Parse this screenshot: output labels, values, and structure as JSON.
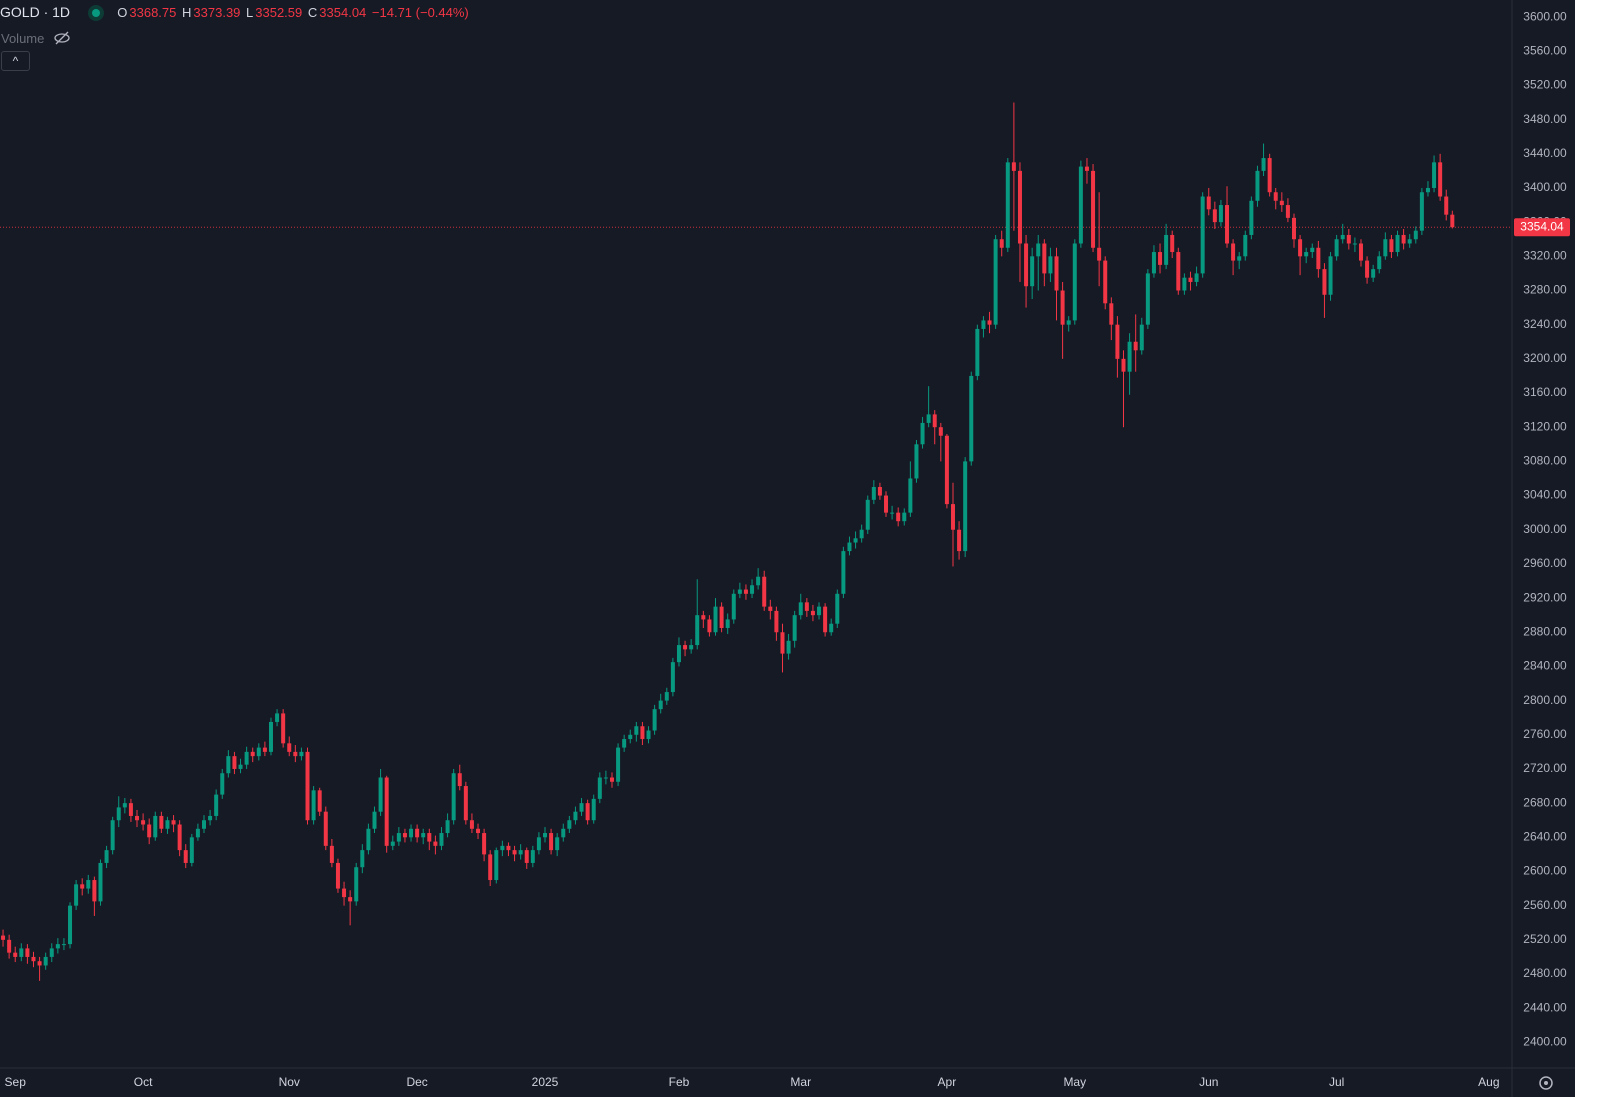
{
  "chart_data": {
    "type": "candlestick",
    "title": "GOLD · 1D",
    "ohlc_labels": [
      "O",
      "H",
      "L",
      "C"
    ],
    "change_label": "−14.71 (−0.44%)",
    "indicator": "Volume",
    "up_color": "#089981",
    "down_color": "#f23645",
    "open": [
      2525,
      2520,
      2505,
      2500,
      2510,
      2500,
      2495,
      2490,
      2500,
      2510,
      2515,
      2515,
      2560,
      2585,
      2580,
      2590,
      2565,
      2610,
      2625,
      2660,
      2675,
      2680,
      2665,
      2660,
      2655,
      2640,
      2665,
      2650,
      2660,
      2655,
      2625,
      2610,
      2640,
      2650,
      2660,
      2665,
      2690,
      2715,
      2735,
      2720,
      2725,
      2740,
      2735,
      2745,
      2740,
      2775,
      2785,
      2750,
      2740,
      2735,
      2740,
      2660,
      2695,
      2670,
      2630,
      2610,
      2580,
      2570,
      2565,
      2605,
      2625,
      2650,
      2670,
      2710,
      2630,
      2635,
      2645,
      2640,
      2650,
      2640,
      2645,
      2635,
      2630,
      2645,
      2660,
      2715,
      2700,
      2660,
      2650,
      2645,
      2620,
      2590,
      2625,
      2630,
      2625,
      2620,
      2625,
      2610,
      2625,
      2640,
      2645,
      2625,
      2640,
      2650,
      2660,
      2670,
      2680,
      2660,
      2685,
      2710,
      2710,
      2705,
      2745,
      2755,
      2760,
      2770,
      2755,
      2765,
      2790,
      2800,
      2810,
      2845,
      2865,
      2860,
      2865,
      2900,
      2895,
      2880,
      2910,
      2885,
      2895,
      2925,
      2930,
      2925,
      2935,
      2945,
      2910,
      2905,
      2880,
      2855,
      2870,
      2900,
      2915,
      2905,
      2900,
      2910,
      2880,
      2890,
      2925,
      2975,
      2985,
      2990,
      3000,
      3035,
      3050,
      3040,
      3020,
      3020,
      3010,
      3020,
      3060,
      3100,
      3125,
      3135,
      3120,
      3110,
      3030,
      3000,
      2975,
      3080,
      3180,
      3235,
      3245,
      3240,
      3340,
      3330,
      3430,
      3420,
      3335,
      3285,
      3320,
      3335,
      3300,
      3320,
      3280,
      3240,
      3245,
      3335,
      3425,
      3420,
      3330,
      3315,
      3265,
      3240,
      3200,
      3185,
      3220,
      3210,
      3240,
      3300,
      3325,
      3310,
      3345,
      3325,
      3280,
      3295,
      3290,
      3300,
      3390,
      3375,
      3360,
      3380,
      3335,
      3315,
      3320,
      3345,
      3385,
      3420,
      3435,
      3395,
      3385,
      3380,
      3365,
      3340,
      3320,
      3325,
      3330,
      3305,
      3275,
      3320,
      3340,
      3345,
      3335,
      3335,
      3315,
      3295,
      3305,
      3320,
      3340,
      3325,
      3345,
      3335,
      3340,
      3350,
      3395,
      3400,
      3430,
      3390,
      3368.75
    ],
    "high": [
      2532,
      2526,
      2512,
      2516,
      2515,
      2506,
      2500,
      2505,
      2516,
      2522,
      2522,
      2564,
      2590,
      2592,
      2596,
      2594,
      2614,
      2630,
      2664,
      2688,
      2686,
      2685,
      2672,
      2668,
      2662,
      2670,
      2670,
      2664,
      2666,
      2660,
      2632,
      2644,
      2656,
      2666,
      2672,
      2696,
      2720,
      2742,
      2740,
      2732,
      2746,
      2745,
      2750,
      2752,
      2780,
      2790,
      2790,
      2758,
      2748,
      2745,
      2745,
      2700,
      2698,
      2676,
      2638,
      2615,
      2588,
      2578,
      2610,
      2632,
      2656,
      2676,
      2720,
      2712,
      2642,
      2652,
      2650,
      2655,
      2655,
      2650,
      2650,
      2642,
      2652,
      2668,
      2720,
      2725,
      2705,
      2668,
      2656,
      2650,
      2625,
      2628,
      2636,
      2634,
      2630,
      2632,
      2628,
      2630,
      2646,
      2652,
      2650,
      2645,
      2656,
      2665,
      2676,
      2686,
      2684,
      2690,
      2716,
      2718,
      2716,
      2750,
      2760,
      2766,
      2775,
      2775,
      2770,
      2795,
      2808,
      2815,
      2850,
      2874,
      2870,
      2872,
      2942,
      2905,
      2900,
      2920,
      2915,
      2902,
      2930,
      2938,
      2936,
      2942,
      2955,
      2952,
      2918,
      2910,
      2890,
      2878,
      2905,
      2925,
      2920,
      2912,
      2915,
      2914,
      2896,
      2930,
      2980,
      2992,
      2998,
      3006,
      3040,
      3058,
      3055,
      3045,
      3028,
      3026,
      3025,
      3080,
      3105,
      3132,
      3168,
      3140,
      3125,
      3112,
      3055,
      3010,
      3085,
      3185,
      3240,
      3250,
      3255,
      3345,
      3350,
      3435,
      3500,
      3430,
      3345,
      3330,
      3345,
      3340,
      3330,
      3330,
      3290,
      3250,
      3340,
      3432,
      3435,
      3428,
      3395,
      3320,
      3272,
      3250,
      3210,
      3230,
      3252,
      3248,
      3305,
      3333,
      3335,
      3358,
      3350,
      3330,
      3300,
      3302,
      3308,
      3395,
      3400,
      3384,
      3386,
      3402,
      3340,
      3325,
      3350,
      3390,
      3426,
      3452,
      3440,
      3400,
      3395,
      3388,
      3370,
      3345,
      3330,
      3335,
      3338,
      3312,
      3325,
      3345,
      3358,
      3352,
      3342,
      3340,
      3320,
      3310,
      3326,
      3348,
      3345,
      3350,
      3352,
      3346,
      3355,
      3400,
      3408,
      3438,
      3440,
      3398,
      3373.39
    ],
    "low": [
      2512,
      2498,
      2494,
      2495,
      2492,
      2488,
      2472,
      2485,
      2494,
      2504,
      2508,
      2510,
      2555,
      2572,
      2574,
      2548,
      2560,
      2604,
      2620,
      2652,
      2668,
      2658,
      2652,
      2648,
      2632,
      2636,
      2645,
      2644,
      2646,
      2618,
      2604,
      2606,
      2636,
      2645,
      2654,
      2660,
      2685,
      2710,
      2714,
      2715,
      2720,
      2728,
      2730,
      2735,
      2736,
      2770,
      2745,
      2735,
      2728,
      2730,
      2655,
      2655,
      2665,
      2625,
      2605,
      2575,
      2560,
      2537,
      2560,
      2598,
      2620,
      2645,
      2665,
      2622,
      2625,
      2630,
      2634,
      2635,
      2634,
      2632,
      2625,
      2620,
      2625,
      2640,
      2655,
      2695,
      2655,
      2645,
      2638,
      2612,
      2583,
      2586,
      2618,
      2618,
      2612,
      2614,
      2603,
      2605,
      2620,
      2634,
      2620,
      2618,
      2635,
      2645,
      2655,
      2665,
      2655,
      2656,
      2680,
      2702,
      2698,
      2700,
      2740,
      2750,
      2752,
      2748,
      2750,
      2760,
      2785,
      2795,
      2805,
      2840,
      2852,
      2855,
      2860,
      2885,
      2875,
      2876,
      2880,
      2878,
      2890,
      2920,
      2918,
      2920,
      2930,
      2905,
      2895,
      2870,
      2833,
      2848,
      2862,
      2895,
      2898,
      2893,
      2895,
      2875,
      2876,
      2885,
      2920,
      2970,
      2978,
      2985,
      2995,
      3030,
      3035,
      3015,
      3012,
      3004,
      3005,
      3015,
      3055,
      3095,
      3120,
      3100,
      3080,
      3025,
      2957,
      2965,
      2968,
      3075,
      3175,
      3225,
      3230,
      3235,
      3320,
      3325,
      3350,
      3290,
      3260,
      3270,
      3280,
      3285,
      3290,
      3245,
      3200,
      3232,
      3240,
      3330,
      3405,
      3325,
      3285,
      3258,
      3222,
      3178,
      3120,
      3158,
      3185,
      3205,
      3235,
      3295,
      3300,
      3305,
      3318,
      3275,
      3275,
      3280,
      3285,
      3295,
      3368,
      3352,
      3355,
      3330,
      3298,
      3305,
      3315,
      3340,
      3378,
      3414,
      3390,
      3375,
      3372,
      3360,
      3330,
      3298,
      3312,
      3318,
      3295,
      3248,
      3268,
      3315,
      3335,
      3328,
      3325,
      3308,
      3288,
      3290,
      3300,
      3316,
      3318,
      3320,
      3328,
      3330,
      3335,
      3345,
      3390,
      3395,
      3385,
      3362,
      3352.59
    ],
    "close": [
      2520,
      2505,
      2500,
      2510,
      2500,
      2495,
      2490,
      2500,
      2510,
      2515,
      2515,
      2560,
      2585,
      2580,
      2590,
      2565,
      2610,
      2625,
      2660,
      2675,
      2680,
      2665,
      2660,
      2655,
      2640,
      2665,
      2650,
      2660,
      2655,
      2625,
      2610,
      2640,
      2650,
      2660,
      2665,
      2690,
      2715,
      2735,
      2720,
      2725,
      2740,
      2735,
      2745,
      2740,
      2775,
      2785,
      2750,
      2740,
      2735,
      2740,
      2660,
      2695,
      2670,
      2630,
      2610,
      2580,
      2570,
      2565,
      2605,
      2625,
      2650,
      2670,
      2710,
      2630,
      2635,
      2645,
      2640,
      2650,
      2640,
      2645,
      2635,
      2630,
      2645,
      2660,
      2715,
      2700,
      2660,
      2650,
      2645,
      2620,
      2590,
      2625,
      2630,
      2625,
      2620,
      2625,
      2610,
      2625,
      2640,
      2645,
      2625,
      2640,
      2650,
      2660,
      2670,
      2680,
      2660,
      2685,
      2710,
      2710,
      2705,
      2745,
      2755,
      2760,
      2770,
      2755,
      2765,
      2790,
      2800,
      2810,
      2845,
      2865,
      2860,
      2865,
      2900,
      2895,
      2880,
      2910,
      2885,
      2895,
      2925,
      2930,
      2925,
      2935,
      2945,
      2910,
      2905,
      2880,
      2855,
      2870,
      2900,
      2915,
      2905,
      2900,
      2910,
      2880,
      2890,
      2925,
      2975,
      2985,
      2990,
      3000,
      3035,
      3050,
      3040,
      3020,
      3020,
      3010,
      3020,
      3060,
      3100,
      3125,
      3135,
      3120,
      3110,
      3030,
      3000,
      2975,
      3080,
      3180,
      3235,
      3245,
      3240,
      3340,
      3330,
      3430,
      3420,
      3335,
      3285,
      3320,
      3335,
      3300,
      3320,
      3280,
      3240,
      3245,
      3335,
      3425,
      3420,
      3330,
      3315,
      3265,
      3240,
      3200,
      3185,
      3220,
      3210,
      3240,
      3300,
      3325,
      3310,
      3345,
      3325,
      3280,
      3295,
      3290,
      3300,
      3390,
      3375,
      3360,
      3380,
      3335,
      3315,
      3320,
      3345,
      3385,
      3420,
      3435,
      3395,
      3385,
      3380,
      3365,
      3340,
      3320,
      3325,
      3330,
      3305,
      3275,
      3320,
      3340,
      3345,
      3335,
      3335,
      3315,
      3295,
      3305,
      3320,
      3340,
      3325,
      3345,
      3335,
      3340,
      3350,
      3395,
      3400,
      3430,
      3390,
      3368.75,
      3354.04
    ],
    "ylim": [
      2370,
      3620
    ],
    "yticks": [
      {
        "value": 2400,
        "label": "2400.00"
      },
      {
        "value": 2440,
        "label": "2440.00"
      },
      {
        "value": 2480,
        "label": "2480.00"
      },
      {
        "value": 2520,
        "label": "2520.00"
      },
      {
        "value": 2560,
        "label": "2560.00"
      },
      {
        "value": 2600,
        "label": "2600.00"
      },
      {
        "value": 2640,
        "label": "2640.00"
      },
      {
        "value": 2680,
        "label": "2680.00"
      },
      {
        "value": 2720,
        "label": "2720.00"
      },
      {
        "value": 2760,
        "label": "2760.00"
      },
      {
        "value": 2800,
        "label": "2800.00"
      },
      {
        "value": 2840,
        "label": "2840.00"
      },
      {
        "value": 2880,
        "label": "2880.00"
      },
      {
        "value": 2920,
        "label": "2920.00"
      },
      {
        "value": 2960,
        "label": "2960.00"
      },
      {
        "value": 3000,
        "label": "3000.00"
      },
      {
        "value": 3040,
        "label": "3040.00"
      },
      {
        "value": 3080,
        "label": "3080.00"
      },
      {
        "value": 3120,
        "label": "3120.00"
      },
      {
        "value": 3160,
        "label": "3160.00"
      },
      {
        "value": 3200,
        "label": "3200.00"
      },
      {
        "value": 3240,
        "label": "3240.00"
      },
      {
        "value": 3280,
        "label": "3280.00"
      },
      {
        "value": 3320,
        "label": "3320.00"
      },
      {
        "value": 3360,
        "label": "3360.00"
      },
      {
        "value": 3400,
        "label": "3400.00"
      },
      {
        "value": 3440,
        "label": "3440.00"
      },
      {
        "value": 3480,
        "label": "3480.00"
      },
      {
        "value": 3520,
        "label": "3520.00"
      },
      {
        "value": 3560,
        "label": "3560.00"
      },
      {
        "value": 3600,
        "label": "3600.00"
      }
    ],
    "xlim": [
      -0.5,
      247.8
    ],
    "xticks": [
      {
        "value": 2,
        "label": "Sep"
      },
      {
        "value": 23,
        "label": "Oct"
      },
      {
        "value": 47,
        "label": "Nov"
      },
      {
        "value": 68,
        "label": "Dec"
      },
      {
        "value": 89,
        "label": "2025"
      },
      {
        "value": 111,
        "label": "Feb"
      },
      {
        "value": 131,
        "label": "Mar"
      },
      {
        "value": 155,
        "label": "Apr"
      },
      {
        "value": 176,
        "label": "May"
      },
      {
        "value": 198,
        "label": "Jun"
      },
      {
        "value": 219,
        "label": "Jul"
      },
      {
        "value": 244,
        "label": "Aug"
      }
    ]
  }
}
